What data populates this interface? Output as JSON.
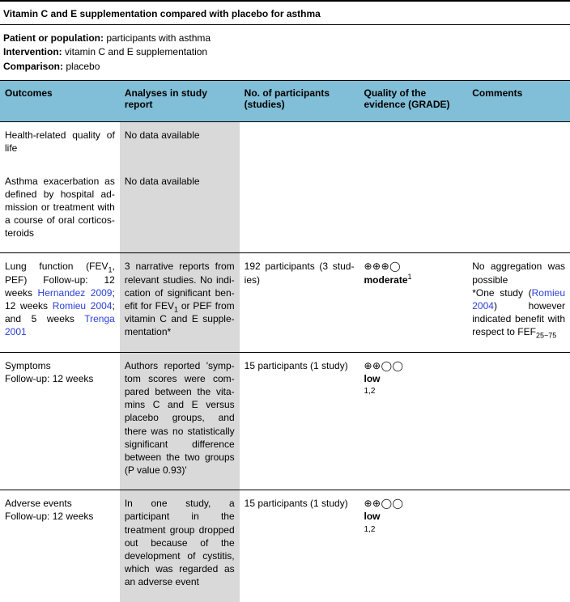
{
  "title": "Vitamin C and E supplementation compared with placebo for asthma",
  "meta": {
    "label1": "Patient or population:",
    "val1": " participants with asthma",
    "label2": "Intervention:",
    "val2": " vitamin C and E supplementation",
    "label3": "Comparison:",
    "val3": " placebo"
  },
  "headers": {
    "c1": "Outcomes",
    "c2": "Analyses in study report",
    "c3": "No. of participants (studies)",
    "c4": "Quality of the evidence (GRADE)",
    "c5": "Comments"
  },
  "rows": {
    "r1": {
      "outcome": "Health-related quality of life",
      "analysis": "No data available"
    },
    "r2": {
      "outcome": "Asthma exacerbation as defined by hospital ad­mission or treatment with a course of oral corticos­teroids",
      "analysis": "No data available"
    },
    "r3": {
      "outcome_a": "Lung function (FEV",
      "outcome_b": ", PEF) Follow-up: 12 weeks ",
      "link1": "Hernandez 2009",
      "outcome_c": "; 12 weeks ",
      "link2": "Romieu 2004",
      "outcome_d": "; and 5 weeks ",
      "link3": "Trenga 2001",
      "analysis_a": "3 narrative reports from relevant studies. No indi­cation of significant ben­efit for FEV",
      "analysis_b": " or PEF from vitamin C and E supple­mentation*",
      "participants": "192 participants (3 stud­ies)",
      "grade_sym": "⊕⊕⊕◯",
      "grade_txt": "moderate",
      "grade_sup": "1",
      "comment_a": "No aggregation was pos­sible",
      "comment_b": "*One study (",
      "comment_link": "Romieu 2004",
      "comment_c": ") however indicated benefit with respect to FEF",
      "fef_sub": "25−75"
    },
    "r4": {
      "outcome": "Symptoms",
      "followup": "Follow-up: 12 weeks",
      "analysis": "Authors reported 'symp­tom scores were com­pared between the vita­mins C and E versus placebo groups, and there was no statistically signif­icant difference between the two groups (P value 0.93)'",
      "participants": "15 participants (1 study)",
      "grade_sym": "⊕⊕◯◯",
      "grade_txt": "low",
      "grade_foot": "1,2"
    },
    "r5": {
      "outcome": "Adverse events",
      "followup": "Follow-up: 12 weeks",
      "analysis": "In one study, a participant in the treatment group dropped out because of the development of cys­titis, which was regarded as an adverse event",
      "participants": "15 participants (1 study)",
      "grade_sym": "⊕⊕◯◯",
      "grade_txt": "low",
      "grade_foot": "1,2"
    }
  }
}
